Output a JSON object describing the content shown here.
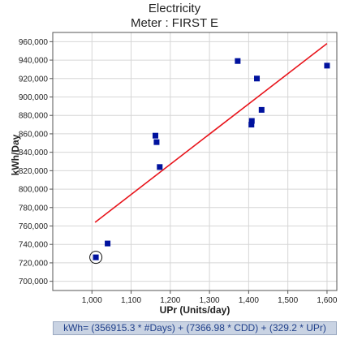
{
  "chart_data": {
    "type": "scatter",
    "title": "Electricity",
    "subtitle": "Meter : FIRST E",
    "xlabel": "UPr (Units/day)",
    "ylabel": "kWh/Day",
    "xlim": [
      900,
      1625
    ],
    "ylim": [
      690000,
      970000
    ],
    "xticks": [
      1000,
      1100,
      1200,
      1300,
      1400,
      1500,
      1600
    ],
    "xtick_labels": [
      "1,000",
      "1,100",
      "1,200",
      "1,300",
      "1,400",
      "1,500",
      "1,600"
    ],
    "yticks": [
      700000,
      720000,
      740000,
      760000,
      780000,
      800000,
      820000,
      840000,
      860000,
      880000,
      900000,
      920000,
      940000,
      960000
    ],
    "ytick_labels": [
      "700,000",
      "720,000",
      "740,000",
      "760,000",
      "780,000",
      "800,000",
      "820,000",
      "840,000",
      "860,000",
      "880,000",
      "900,000",
      "920,000",
      "940,000",
      "960,000"
    ],
    "points": [
      {
        "x": 1010,
        "y": 726000
      },
      {
        "x": 1040,
        "y": 741000
      },
      {
        "x": 1162,
        "y": 858000
      },
      {
        "x": 1165,
        "y": 851000
      },
      {
        "x": 1173,
        "y": 824000
      },
      {
        "x": 1372,
        "y": 939000
      },
      {
        "x": 1407,
        "y": 870000
      },
      {
        "x": 1408,
        "y": 874000
      },
      {
        "x": 1421,
        "y": 920000
      },
      {
        "x": 1433,
        "y": 886000
      },
      {
        "x": 1600,
        "y": 934000
      }
    ],
    "highlighted_point_index": 0,
    "regression_line": {
      "x": [
        1008,
        1600
      ],
      "y": [
        764000,
        958000
      ]
    },
    "grid": true,
    "colors": {
      "points": "#00129e",
      "line": "#e8141b",
      "grid": "#d6d6d6"
    },
    "equation": "kWh= (356915.3 * #Days) + (7366.98 * CDD) + (329.2 * UPr)"
  }
}
